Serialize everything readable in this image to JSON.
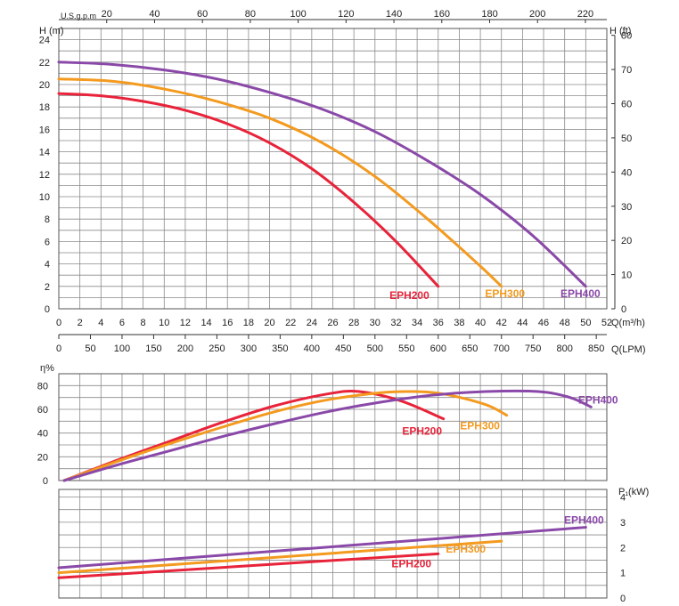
{
  "chart_data": [
    {
      "type": "line",
      "name": "head-curve",
      "ylabel_left": "H (m)",
      "ylabel_right": "H (ft)",
      "top_axis_label": "U.S.g.p.m",
      "xlabel_m3h": "Q(m³/h)",
      "xlabel_lpm": "Q(LPM)",
      "xlim_m3h": [
        0,
        52
      ],
      "ylim_m": [
        0,
        25
      ],
      "ylim_ft": [
        0,
        82
      ],
      "grid": true,
      "x_ticks_m3h": [
        0,
        2,
        4,
        6,
        8,
        10,
        12,
        14,
        16,
        18,
        20,
        22,
        24,
        26,
        28,
        30,
        32,
        34,
        36,
        38,
        40,
        42,
        44,
        46,
        48,
        50,
        52
      ],
      "x_ticks_lpm": [
        0,
        50,
        100,
        150,
        200,
        250,
        300,
        350,
        400,
        450,
        500,
        550,
        600,
        650,
        700,
        750,
        800,
        850
      ],
      "x_ticks_gpm": [
        20,
        40,
        60,
        80,
        100,
        120,
        140,
        160,
        180,
        200,
        220
      ],
      "y_ticks_m": [
        0,
        2,
        4,
        6,
        8,
        10,
        12,
        14,
        16,
        18,
        20,
        22,
        24
      ],
      "y_ticks_ft": [
        0,
        10,
        20,
        30,
        40,
        50,
        60,
        70,
        80
      ],
      "series": [
        {
          "name": "EPH200",
          "color": "#e8233a",
          "x": [
            0,
            4,
            8,
            12,
            16,
            20,
            24,
            28,
            32,
            36
          ],
          "y": [
            19.2,
            19.0,
            18.5,
            17.7,
            16.5,
            14.8,
            12.5,
            9.5,
            6.0,
            2.0
          ]
        },
        {
          "name": "EPH300",
          "color": "#f39a1f",
          "x": [
            0,
            5,
            10,
            15,
            20,
            25,
            30,
            35,
            40,
            42
          ],
          "y": [
            20.5,
            20.3,
            19.6,
            18.5,
            17.0,
            14.8,
            11.8,
            8.0,
            3.8,
            2.0
          ]
        },
        {
          "name": "EPH400",
          "color": "#8a49a8",
          "x": [
            0,
            5,
            10,
            15,
            20,
            25,
            30,
            35,
            40,
            45,
            50
          ],
          "y": [
            22.0,
            21.8,
            21.3,
            20.5,
            19.3,
            17.8,
            15.8,
            13.2,
            10.2,
            6.5,
            2.0
          ]
        }
      ]
    },
    {
      "type": "line",
      "name": "efficiency-curve",
      "ylabel": "η%",
      "ylim": [
        0,
        90
      ],
      "y_ticks": [
        0,
        20,
        40,
        60,
        80
      ],
      "grid": true,
      "series": [
        {
          "name": "EPH200",
          "color": "#e8233a",
          "x": [
            0,
            5,
            10,
            15,
            20,
            25,
            28,
            32,
            36
          ],
          "y": [
            0,
            17,
            33,
            49,
            63,
            73,
            75,
            67,
            52
          ]
        },
        {
          "name": "EPH300",
          "color": "#f39a1f",
          "x": [
            0,
            5,
            10,
            15,
            20,
            25,
            30,
            33,
            36,
            40,
            42
          ],
          "y": [
            0,
            16,
            31,
            45,
            58,
            68,
            74,
            75,
            73,
            64,
            55
          ]
        },
        {
          "name": "EPH400",
          "color": "#8a49a8",
          "x": [
            0,
            5,
            10,
            15,
            20,
            25,
            30,
            35,
            40,
            45,
            48,
            50
          ],
          "y": [
            0,
            13,
            25,
            37,
            48,
            58,
            66,
            72,
            75,
            75,
            70,
            62
          ]
        }
      ]
    },
    {
      "type": "line",
      "name": "power-curve",
      "ylabel": "P₁(kW)",
      "ylim": [
        0,
        4.3
      ],
      "y_ticks": [
        0,
        1,
        2,
        3,
        4
      ],
      "grid": true,
      "series": [
        {
          "name": "EPH200",
          "color": "#e8233a",
          "x": [
            0,
            36
          ],
          "y": [
            0.8,
            1.75
          ]
        },
        {
          "name": "EPH300",
          "color": "#f39a1f",
          "x": [
            0,
            42
          ],
          "y": [
            1.0,
            2.25
          ]
        },
        {
          "name": "EPH400",
          "color": "#8a49a8",
          "x": [
            0,
            50
          ],
          "y": [
            1.2,
            2.8
          ]
        }
      ]
    }
  ]
}
